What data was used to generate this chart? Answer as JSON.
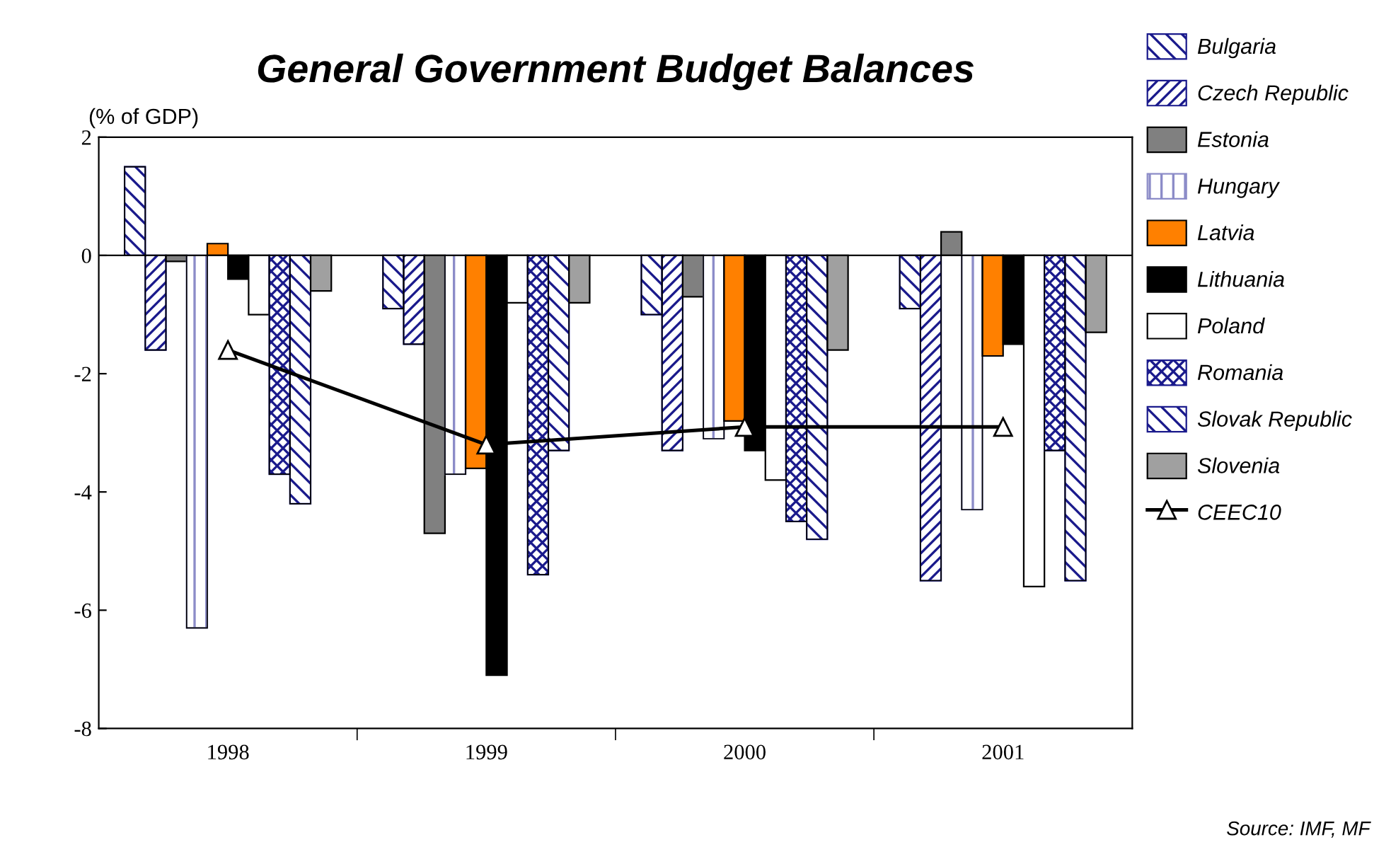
{
  "chart_data": {
    "type": "bar",
    "title": "General Government Budget Balances",
    "ylabel": "(% of GDP)",
    "categories": [
      "1998",
      "1999",
      "2000",
      "2001"
    ],
    "series": [
      {
        "name": "Bulgaria",
        "color": "#1a1a8c",
        "values": [
          1.5,
          -0.9,
          -1.0,
          -0.9
        ]
      },
      {
        "name": "Czech Republic",
        "color": "#1a1a8c",
        "values": [
          -1.6,
          -1.5,
          -3.3,
          -5.5
        ]
      },
      {
        "name": "Estonia",
        "color": "#808080",
        "values": [
          -0.1,
          -4.7,
          -0.7,
          0.4
        ]
      },
      {
        "name": "Hungary",
        "color": "#8c8cc8",
        "values": [
          -6.3,
          -3.7,
          -3.1,
          -4.3
        ]
      },
      {
        "name": "Latvia",
        "color": "#ff8000",
        "values": [
          0.2,
          -3.6,
          -2.8,
          -1.7
        ]
      },
      {
        "name": "Lithuania",
        "color": "#000000",
        "values": [
          -0.4,
          -7.1,
          -3.3,
          -1.5
        ]
      },
      {
        "name": "Poland",
        "color": "#ffffff",
        "values": [
          -1.0,
          -0.8,
          -3.8,
          -5.6
        ]
      },
      {
        "name": "Romania",
        "color": "#1a1a8c",
        "values": [
          -3.7,
          -5.4,
          -4.5,
          -3.3
        ]
      },
      {
        "name": "Slovak Republic",
        "color": "#1a1a8c",
        "values": [
          -4.2,
          -3.3,
          -4.8,
          -5.5
        ]
      },
      {
        "name": "Slovenia",
        "color": "#a0a0a0",
        "values": [
          -0.6,
          -0.8,
          -1.6,
          -1.3
        ]
      },
      {
        "name": "CEEC10",
        "type": "line",
        "color": "#000000",
        "marker": "triangle",
        "values": [
          -1.6,
          -3.2,
          -2.9,
          -2.9
        ]
      }
    ],
    "ylim": [
      -8,
      2
    ],
    "yticks": [
      -8,
      -6,
      -4,
      -2,
      0,
      2
    ],
    "ref_lines": [
      {
        "axis": "y",
        "value": 0,
        "color": "#000000"
      }
    ],
    "legend": "right",
    "annotations": [
      "Source: IMF, MF"
    ]
  }
}
